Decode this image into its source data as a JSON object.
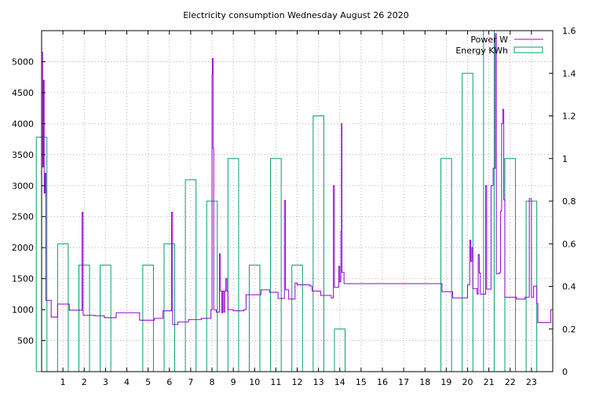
{
  "chart_data": {
    "type": "line",
    "title": "Electricity consumption Wednesday August 26 2020",
    "xlabel": "",
    "ylabel": "",
    "xlim": [
      0,
      24
    ],
    "ylim_left": [
      0,
      5500
    ],
    "ylim_right": [
      0,
      1.6
    ],
    "x_ticks": [
      1,
      2,
      3,
      4,
      5,
      6,
      7,
      8,
      9,
      10,
      11,
      12,
      13,
      14,
      15,
      16,
      17,
      18,
      19,
      20,
      21,
      22,
      23
    ],
    "y_ticks_left": [
      500,
      1000,
      1500,
      2000,
      2500,
      3000,
      3500,
      4000,
      4500,
      5000
    ],
    "y_ticks_right": [
      0,
      0.2,
      0.4,
      0.6,
      0.8,
      1,
      1.2,
      1.4,
      1.6
    ],
    "grid": true,
    "legend_position": "top-right",
    "series": [
      {
        "name": "Power W",
        "axis": "left",
        "style": "steps",
        "color": "#9400d3",
        "points": [
          [
            0.0,
            5150
          ],
          [
            0.05,
            3300
          ],
          [
            0.08,
            4700
          ],
          [
            0.12,
            2880
          ],
          [
            0.16,
            3200
          ],
          [
            0.2,
            1150
          ],
          [
            0.45,
            880
          ],
          [
            0.75,
            1090
          ],
          [
            1.3,
            990
          ],
          [
            1.9,
            2570
          ],
          [
            1.95,
            910
          ],
          [
            2.5,
            900
          ],
          [
            2.95,
            870
          ],
          [
            3.5,
            950
          ],
          [
            4.6,
            830
          ],
          [
            5.3,
            860
          ],
          [
            5.7,
            980
          ],
          [
            6.1,
            2570
          ],
          [
            6.15,
            760
          ],
          [
            6.4,
            800
          ],
          [
            6.9,
            840
          ],
          [
            7.5,
            860
          ],
          [
            7.95,
            1000
          ],
          [
            8.0,
            4800
          ],
          [
            8.02,
            5050
          ],
          [
            8.05,
            3600
          ],
          [
            8.08,
            1000
          ],
          [
            8.2,
            960
          ],
          [
            8.35,
            1900
          ],
          [
            8.4,
            1300
          ],
          [
            8.45,
            950
          ],
          [
            8.5,
            1300
          ],
          [
            8.55,
            960
          ],
          [
            8.6,
            1300
          ],
          [
            8.65,
            1500
          ],
          [
            8.7,
            1300
          ],
          [
            8.75,
            1000
          ],
          [
            9.0,
            980
          ],
          [
            9.5,
            1000
          ],
          [
            9.6,
            1240
          ],
          [
            10.3,
            1320
          ],
          [
            10.7,
            1280
          ],
          [
            11.1,
            1180
          ],
          [
            11.4,
            2760
          ],
          [
            11.45,
            1320
          ],
          [
            11.6,
            1170
          ],
          [
            11.9,
            1430
          ],
          [
            12.0,
            1400
          ],
          [
            12.6,
            1380
          ],
          [
            12.7,
            1300
          ],
          [
            13.1,
            1230
          ],
          [
            13.6,
            1190
          ],
          [
            13.7,
            3000
          ],
          [
            13.75,
            1360
          ],
          [
            13.95,
            1700
          ],
          [
            14.0,
            1450
          ],
          [
            14.05,
            2260
          ],
          [
            14.08,
            4000
          ],
          [
            14.1,
            1600
          ],
          [
            14.2,
            1420
          ],
          [
            18.8,
            1290
          ],
          [
            19.3,
            1190
          ],
          [
            20.0,
            1400
          ],
          [
            20.1,
            2120
          ],
          [
            20.15,
            1780
          ],
          [
            20.2,
            2000
          ],
          [
            20.25,
            1340
          ],
          [
            20.45,
            1250
          ],
          [
            20.5,
            1890
          ],
          [
            20.55,
            1590
          ],
          [
            20.6,
            1250
          ],
          [
            20.85,
            3000
          ],
          [
            20.9,
            1330
          ],
          [
            21.1,
            3000
          ],
          [
            21.2,
            3280
          ],
          [
            21.3,
            5450
          ],
          [
            21.35,
            1580
          ],
          [
            21.5,
            1600
          ],
          [
            21.55,
            2590
          ],
          [
            21.6,
            4000
          ],
          [
            21.65,
            4230
          ],
          [
            21.7,
            2770
          ],
          [
            21.75,
            1200
          ],
          [
            22.3,
            1170
          ],
          [
            22.7,
            1200
          ],
          [
            22.9,
            2790
          ],
          [
            23.0,
            1200
          ],
          [
            23.1,
            1380
          ],
          [
            23.25,
            1100
          ],
          [
            23.3,
            790
          ],
          [
            23.9,
            1000
          ],
          [
            24.0,
            2560
          ]
        ]
      },
      {
        "name": "Energy KWh",
        "axis": "right",
        "style": "boxes",
        "color": "#009e73",
        "boxes": [
          {
            "hour": 0,
            "value": 1.1
          },
          {
            "hour": 1,
            "value": 0.6
          },
          {
            "hour": 2,
            "value": 0.5
          },
          {
            "hour": 3,
            "value": 0.5
          },
          {
            "hour": 5,
            "value": 0.5
          },
          {
            "hour": 6,
            "value": 0.6
          },
          {
            "hour": 7,
            "value": 0.9
          },
          {
            "hour": 8,
            "value": 0.8
          },
          {
            "hour": 9,
            "value": 1.0
          },
          {
            "hour": 10,
            "value": 0.5
          },
          {
            "hour": 11,
            "value": 1.0
          },
          {
            "hour": 12,
            "value": 0.5
          },
          {
            "hour": 13,
            "value": 1.2
          },
          {
            "hour": 14,
            "value": 0.2
          },
          {
            "hour": 19,
            "value": 1.0
          },
          {
            "hour": 20,
            "value": 1.4
          },
          {
            "hour": 21,
            "value": 1.6
          },
          {
            "hour": 22,
            "value": 1.0
          },
          {
            "hour": 23,
            "value": 0.8
          }
        ]
      }
    ]
  }
}
